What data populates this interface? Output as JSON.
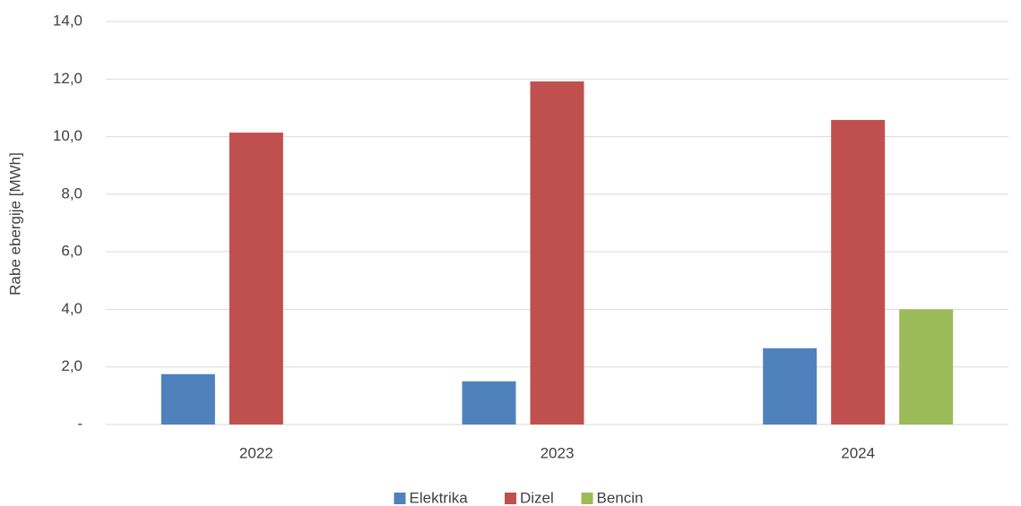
{
  "chart_data": {
    "type": "bar",
    "y_label": "Rabe ebergije [MWh]",
    "categories": [
      "2022",
      "2023",
      "2024"
    ],
    "series": [
      {
        "name": "Elektrika",
        "color": "#4f81bd",
        "values": [
          1.75,
          1.5,
          2.65
        ]
      },
      {
        "name": "Dizel",
        "color": "#c0504d",
        "values": [
          10.14,
          11.92,
          10.58
        ]
      },
      {
        "name": "Bencin",
        "color": "#9bbb59",
        "values": [
          null,
          null,
          4.0
        ]
      }
    ],
    "ylim": [
      0,
      14
    ],
    "yticks": [
      {
        "value": 0,
        "label": "-"
      },
      {
        "value": 2,
        "label": "2,0"
      },
      {
        "value": 4,
        "label": "4,0"
      },
      {
        "value": 6,
        "label": "6,0"
      },
      {
        "value": 8,
        "label": "8,0"
      },
      {
        "value": 10,
        "label": "10,0"
      },
      {
        "value": 12,
        "label": "12,0"
      },
      {
        "value": 14,
        "label": "14,0"
      }
    ],
    "grid": true,
    "legend": "bottom"
  }
}
